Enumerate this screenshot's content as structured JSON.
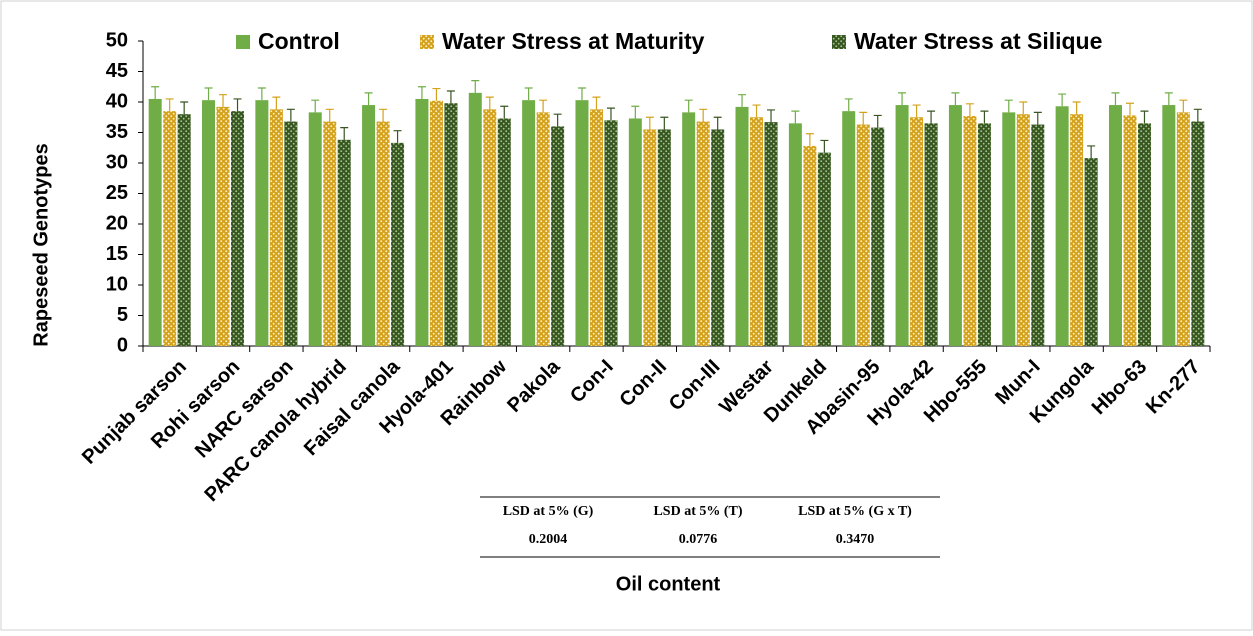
{
  "chart_data": {
    "type": "bar",
    "y_label": "Rapeseed Genotypes",
    "x_label": "Oil content",
    "categories": [
      "Punjab sarson",
      "Rohi sarson",
      "NARC sarson",
      "PARC canola hybrid",
      "Faisal canola",
      "Hyola-401",
      "Rainbow",
      "Pakola",
      "Con-I",
      "Con-II",
      "Con-III",
      "Westar",
      "Dunkeld",
      "Abasin-95",
      "Hyola-42",
      "Hbo-555",
      "Mun-I",
      "Kungola",
      "Hbo-63",
      "Kn-277"
    ],
    "series": [
      {
        "name": "Control",
        "color": "#70ad47",
        "pattern": false,
        "values": [
          40.5,
          40.3,
          40.3,
          38.3,
          39.5,
          40.5,
          41.5,
          40.3,
          40.3,
          37.3,
          38.3,
          39.2,
          36.5,
          38.5,
          39.5,
          39.5,
          38.3,
          39.3,
          39.5,
          39.5
        ],
        "errors": [
          2.0,
          2.0,
          2.0,
          2.0,
          2.0,
          2.0,
          2.0,
          2.0,
          2.0,
          2.0,
          2.0,
          2.0,
          2.0,
          2.0,
          2.0,
          2.0,
          2.0,
          2.0,
          2.0,
          2.0
        ]
      },
      {
        "name": "Water Stress at Maturity",
        "color": "#d4a21c",
        "pattern": true,
        "values": [
          38.5,
          39.2,
          38.8,
          36.8,
          36.8,
          40.2,
          38.8,
          38.3,
          38.8,
          35.5,
          36.8,
          37.5,
          32.8,
          36.3,
          37.5,
          37.7,
          38.0,
          38.0,
          37.8,
          38.3
        ],
        "errors": [
          2.0,
          2.0,
          2.0,
          2.0,
          2.0,
          2.0,
          2.0,
          2.0,
          2.0,
          2.0,
          2.0,
          2.0,
          2.0,
          2.0,
          2.0,
          2.0,
          2.0,
          2.0,
          2.0,
          2.0
        ]
      },
      {
        "name": "Water Stress at Silique",
        "color": "#375623",
        "pattern": true,
        "values": [
          38.0,
          38.5,
          36.8,
          33.8,
          33.3,
          39.8,
          37.3,
          36.0,
          37.0,
          35.5,
          35.5,
          36.7,
          31.7,
          35.8,
          36.5,
          36.5,
          36.3,
          30.8,
          36.5,
          36.8
        ],
        "errors": [
          2.0,
          2.0,
          2.0,
          2.0,
          2.0,
          2.0,
          2.0,
          2.0,
          2.0,
          2.0,
          2.0,
          2.0,
          2.0,
          2.0,
          2.0,
          2.0,
          2.0,
          2.0,
          2.0,
          2.0
        ]
      }
    ],
    "ylim": [
      0,
      50
    ],
    "yticks": [
      0,
      5,
      10,
      15,
      20,
      25,
      30,
      35,
      40,
      45,
      50
    ],
    "legend": "top",
    "table": {
      "headers": [
        "LSD at 5% (G)",
        "LSD at 5% (T)",
        "LSD at 5% (G x T)"
      ],
      "values": [
        "0.2004",
        "0.0776",
        "0.3470"
      ]
    }
  }
}
